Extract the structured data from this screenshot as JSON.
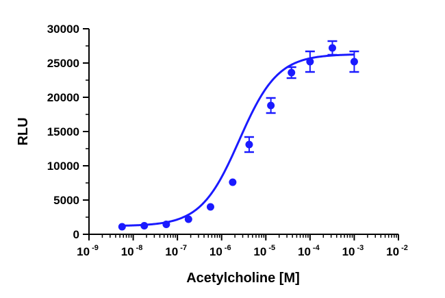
{
  "chart_data": {
    "type": "scatter",
    "xlabel": "Acetylcholine [M]",
    "ylabel": "RLU",
    "xscale": "log",
    "xlim": [
      1e-09,
      0.01
    ],
    "ylim": [
      0,
      30000
    ],
    "x_tick_base": "10",
    "x_tick_exponents": [
      "-9",
      "-8",
      "-7",
      "-6",
      "-5",
      "-4",
      "-3",
      "-2"
    ],
    "y_ticks": [
      "0",
      "5000",
      "10000",
      "15000",
      "20000",
      "25000",
      "30000"
    ],
    "grid": false,
    "legend": "none",
    "color": "#1a1aff",
    "series": [
      {
        "x": [
          5.6e-09,
          1.78e-08,
          5.6e-08,
          1.78e-07,
          5.6e-07,
          1.78e-06,
          4.2e-06,
          1.3e-05,
          3.8e-05,
          0.0001,
          0.00032,
          0.001
        ],
        "y": [
          1100,
          1250,
          1450,
          2200,
          4000,
          7600,
          13100,
          18800,
          23600,
          25200,
          27200,
          25200
        ],
        "error": [
          0,
          0,
          0,
          0,
          0,
          0,
          1100,
          1100,
          800,
          1500,
          1000,
          1500
        ]
      }
    ],
    "fit": {
      "bottom": 1200,
      "top": 26300,
      "log_ec50": -5.6,
      "hill_slope": 1.0
    }
  }
}
